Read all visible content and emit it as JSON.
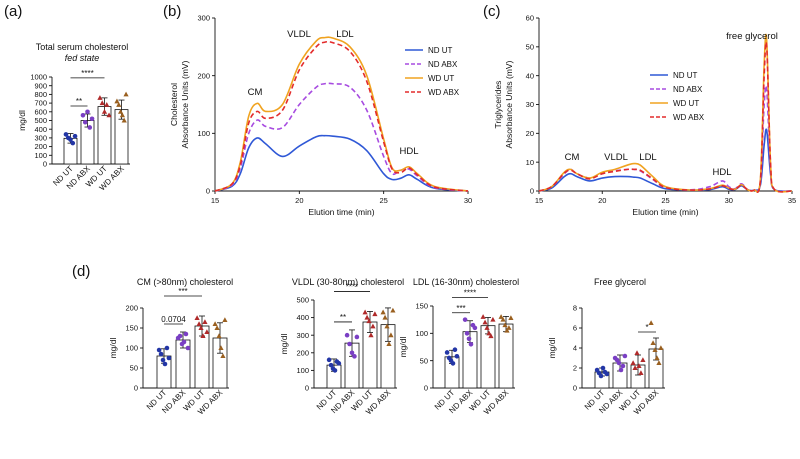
{
  "panel_labels": [
    "(a)",
    "(b)",
    "(c)",
    "(d)"
  ],
  "chart_data": [
    {
      "id": "a",
      "type": "bar",
      "title": "Total serum cholesterol",
      "subtitle": "fed state",
      "ylabel": "mg/dl",
      "ylim": [
        0,
        1000
      ],
      "yticks": [
        "0",
        "100",
        "200",
        "300",
        "400",
        "500",
        "600",
        "700",
        "800",
        "900",
        "1000"
      ],
      "categories": [
        "ND UT",
        "ND ABX",
        "WD UT",
        "WD ABX"
      ],
      "values": [
        295,
        500,
        660,
        625
      ],
      "errors": [
        55,
        75,
        100,
        110
      ],
      "points": [
        [
          340,
          300,
          280,
          240,
          320
        ],
        [
          560,
          480,
          600,
          420,
          520
        ],
        [
          760,
          700,
          600,
          680,
          560
        ],
        [
          720,
          680,
          600,
          560,
          500,
          800
        ]
      ],
      "significance": [
        {
          "from": 0,
          "to": 1,
          "label": "**"
        },
        {
          "from": 0,
          "to": 2,
          "label": "****"
        }
      ]
    },
    {
      "id": "b",
      "type": "line",
      "xlabel": "Elution time (min)",
      "ylabel": "Cholesterol",
      "ylabel2": "Absorbance Units (mV)",
      "xlim": [
        15,
        30
      ],
      "ylim": [
        0,
        300
      ],
      "xticks": [
        "15",
        "20",
        "25",
        "30"
      ],
      "yticks": [
        "0",
        "100",
        "200",
        "300"
      ],
      "peak_labels": [
        "CM",
        "VLDL",
        "LDL",
        "HDL"
      ],
      "x": [
        15,
        16,
        16.5,
        17,
        17.5,
        18,
        19,
        20,
        21,
        21.5,
        22,
        23,
        24,
        25,
        25.5,
        26,
        26.5,
        27,
        28,
        30
      ],
      "series": [
        {
          "name": "ND UT",
          "color": "#2f58d6",
          "dash": false,
          "values": [
            0,
            8,
            30,
            75,
            92,
            82,
            60,
            78,
            94,
            96,
            95,
            90,
            70,
            30,
            20,
            22,
            28,
            20,
            5,
            0
          ]
        },
        {
          "name": "ND ABX",
          "color": "#a74be0",
          "dash": true,
          "values": [
            0,
            10,
            40,
            100,
            123,
            112,
            110,
            150,
            180,
            186,
            186,
            180,
            140,
            60,
            30,
            36,
            38,
            26,
            6,
            0
          ]
        },
        {
          "name": "WD UT",
          "color": "#f0a320",
          "dash": false,
          "values": [
            0,
            12,
            50,
            130,
            152,
            138,
            150,
            220,
            260,
            266,
            265,
            250,
            200,
            90,
            40,
            36,
            42,
            30,
            8,
            0
          ]
        },
        {
          "name": "WD ABX",
          "color": "#e32b2b",
          "dash": true,
          "values": [
            0,
            12,
            45,
            118,
            138,
            126,
            140,
            210,
            250,
            258,
            257,
            242,
            190,
            85,
            38,
            32,
            40,
            28,
            7,
            0
          ]
        }
      ]
    },
    {
      "id": "c",
      "type": "line",
      "xlabel": "Elution time (min)",
      "ylabel": "Triglycerides",
      "ylabel2": "Absorbance Units (mV)",
      "xlim": [
        15,
        35
      ],
      "ylim": [
        0,
        60
      ],
      "xticks": [
        "15",
        "20",
        "25",
        "30",
        "35"
      ],
      "yticks": [
        "0",
        "10",
        "20",
        "30",
        "40",
        "50",
        "60"
      ],
      "peak_labels": [
        "CM",
        "VLDL",
        "LDL",
        "HDL",
        "free glycerol"
      ],
      "x": [
        15,
        16,
        17,
        17.5,
        18,
        19,
        20,
        21,
        22,
        22.5,
        23,
        24,
        25,
        27,
        28.5,
        29.5,
        30,
        30.5,
        31,
        31.5,
        32,
        32.5,
        32.8,
        33,
        33.3,
        33.6,
        35
      ],
      "series": [
        {
          "name": "ND UT",
          "color": "#2f58d6",
          "dash": false,
          "values": [
            0,
            1,
            5,
            6,
            5,
            3.5,
            4.5,
            5,
            5,
            4.8,
            4.5,
            2.5,
            0.8,
            0.3,
            0.5,
            1.5,
            0.6,
            0.5,
            1.8,
            0.4,
            0.3,
            2,
            16,
            21,
            6,
            0.5,
            0
          ]
        },
        {
          "name": "ND ABX",
          "color": "#a74be0",
          "dash": true,
          "values": [
            0,
            1.5,
            6,
            7.5,
            6,
            4.5,
            6,
            7,
            7.5,
            7.5,
            7,
            4,
            1.2,
            0.4,
            1.5,
            3.5,
            1.5,
            0.8,
            2.5,
            0.5,
            0.3,
            3,
            30,
            35,
            8,
            0.6,
            0
          ]
        },
        {
          "name": "WD UT",
          "color": "#f0a320",
          "dash": false,
          "values": [
            0,
            1.5,
            6.5,
            7.5,
            6,
            4.5,
            6.5,
            7.5,
            9,
            9.5,
            9,
            5,
            1.5,
            0.3,
            0.8,
            2,
            1,
            0.6,
            2.2,
            0.4,
            0.3,
            4,
            44,
            52,
            10,
            0.6,
            0
          ]
        },
        {
          "name": "WD ABX",
          "color": "#e32b2b",
          "dash": true,
          "values": [
            0,
            1.5,
            6.2,
            7.2,
            6,
            4.2,
            6,
            6.8,
            7.5,
            7.5,
            7.2,
            4.2,
            1.2,
            0.3,
            0.7,
            1.8,
            0.9,
            0.6,
            2,
            0.4,
            0.3,
            3.5,
            40,
            50,
            10,
            0.6,
            0
          ]
        }
      ]
    },
    {
      "id": "d1",
      "type": "bar",
      "title": "CM (>80nm) cholesterol",
      "ylabel": "mg/dl",
      "ylim": [
        0,
        200
      ],
      "yticks": [
        "0",
        "50",
        "100",
        "150",
        "200"
      ],
      "categories": [
        "ND UT",
        "ND ABX",
        "WD UT",
        "WD ABX"
      ],
      "values": [
        80,
        120,
        155,
        125
      ],
      "errors": [
        18,
        20,
        25,
        38
      ],
      "points": [
        [
          95,
          85,
          70,
          60,
          100,
          75
        ],
        [
          125,
          130,
          110,
          115,
          135,
          100
        ],
        [
          175,
          160,
          150,
          130,
          165,
          140
        ],
        [
          160,
          150,
          130,
          100,
          80,
          170
        ]
      ],
      "significance": [
        {
          "from": 0,
          "to": 1,
          "label": "0.0704"
        },
        {
          "from": 0,
          "to": 2,
          "label": "***"
        }
      ]
    },
    {
      "id": "d2",
      "type": "bar",
      "title": "VLDL (30-80nm) cholesterol",
      "ylabel": "mg/dl",
      "ylim": [
        0,
        500
      ],
      "yticks": [
        "0",
        "100",
        "200",
        "300",
        "400",
        "500"
      ],
      "categories": [
        "ND UT",
        "ND ABX",
        "WD UT",
        "WD ABX"
      ],
      "values": [
        130,
        255,
        375,
        360
      ],
      "errors": [
        35,
        75,
        60,
        95
      ],
      "points": [
        [
          160,
          130,
          110,
          100,
          150,
          140
        ],
        [
          300,
          250,
          200,
          180,
          290
        ],
        [
          430,
          400,
          380,
          300,
          350,
          420
        ],
        [
          430,
          400,
          350,
          250,
          300,
          440
        ]
      ],
      "significance": [
        {
          "from": 0,
          "to": 1,
          "label": "**"
        },
        {
          "from": 0,
          "to": 2,
          "label": "****"
        }
      ]
    },
    {
      "id": "d3",
      "type": "bar",
      "title": "LDL (16-30nm) cholesterol",
      "ylabel": "mg/dl",
      "ylim": [
        0,
        150
      ],
      "yticks": [
        "0",
        "50",
        "100",
        "150"
      ],
      "categories": [
        "ND UT",
        "ND ABX",
        "WD UT",
        "WD ABX"
      ],
      "values": [
        57,
        103,
        114,
        117
      ],
      "errors": [
        12,
        20,
        15,
        14
      ],
      "points": [
        [
          65,
          55,
          50,
          45,
          70,
          58
        ],
        [
          125,
          100,
          90,
          80,
          115,
          110
        ],
        [
          130,
          120,
          110,
          100,
          95,
          125
        ],
        [
          130,
          125,
          115,
          105,
          110,
          128
        ]
      ],
      "significance": [
        {
          "from": 0,
          "to": 1,
          "label": "***"
        },
        {
          "from": 0,
          "to": 2,
          "label": "****"
        }
      ]
    },
    {
      "id": "d4",
      "type": "bar",
      "title": "Free glycerol",
      "ylabel": "mg/dl",
      "ylim": [
        0,
        8
      ],
      "yticks": [
        "0",
        "2",
        "4",
        "6",
        "8"
      ],
      "categories": [
        "ND UT",
        "ND ABX",
        "WD UT",
        "WD ABX"
      ],
      "values": [
        1.6,
        2.5,
        2.3,
        3.9
      ],
      "errors": [
        0.4,
        0.8,
        1.0,
        1.1
      ],
      "points": [
        [
          1.8,
          1.5,
          1.2,
          2.0,
          1.6,
          1.4
        ],
        [
          3.0,
          2.8,
          2.5,
          1.8,
          2.2,
          3.2
        ],
        [
          2.5,
          2.0,
          3.5,
          2.2,
          1.5,
          2.8
        ],
        [
          6.5,
          4.5,
          3.8,
          3.0,
          2.5,
          4.0
        ]
      ],
      "significance": [
        {
          "from": 2,
          "to": 3,
          "label": "*"
        }
      ]
    }
  ]
}
